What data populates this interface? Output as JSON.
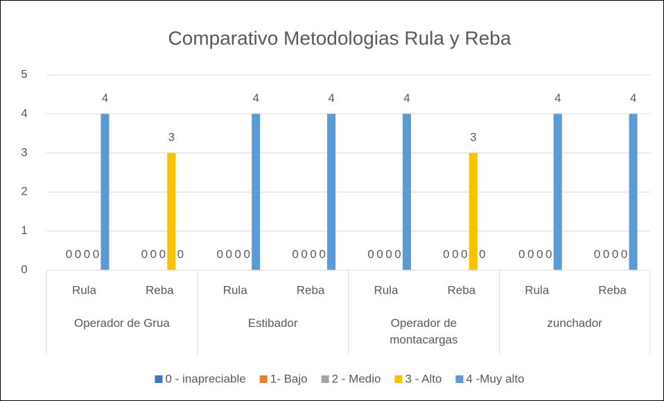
{
  "chart_data": {
    "type": "bar",
    "title": "Comparativo Metodologias Rula  y Reba",
    "categories": [
      "Rula",
      "Reba",
      "Rula",
      "Reba",
      "Rula",
      "Reba",
      "Rula",
      "Reba"
    ],
    "groups": [
      "Operador de Grua",
      "Estibador",
      "Operador de montacargas",
      "zunchador"
    ],
    "series": [
      {
        "name": "0 - inapreciable",
        "color": "#4472c4",
        "values": [
          0,
          0,
          0,
          0,
          0,
          0,
          0,
          0
        ]
      },
      {
        "name": "1- Bajo",
        "color": "#ed7d31",
        "values": [
          0,
          0,
          0,
          0,
          0,
          0,
          0,
          0
        ]
      },
      {
        "name": "2 - Medio",
        "color": "#a5a5a5",
        "values": [
          0,
          0,
          0,
          0,
          0,
          0,
          0,
          0
        ]
      },
      {
        "name": "3 - Alto",
        "color": "#ffc000",
        "values": [
          0,
          3,
          0,
          0,
          0,
          3,
          0,
          0
        ]
      },
      {
        "name": "4 -Muy alto",
        "color": "#5b9bd5",
        "values": [
          4,
          0,
          4,
          4,
          4,
          0,
          4,
          4
        ]
      }
    ],
    "ylim": [
      0,
      5
    ],
    "yticks": [
      0,
      1,
      2,
      3,
      4,
      5
    ],
    "grid": true,
    "legend": "bottom"
  }
}
